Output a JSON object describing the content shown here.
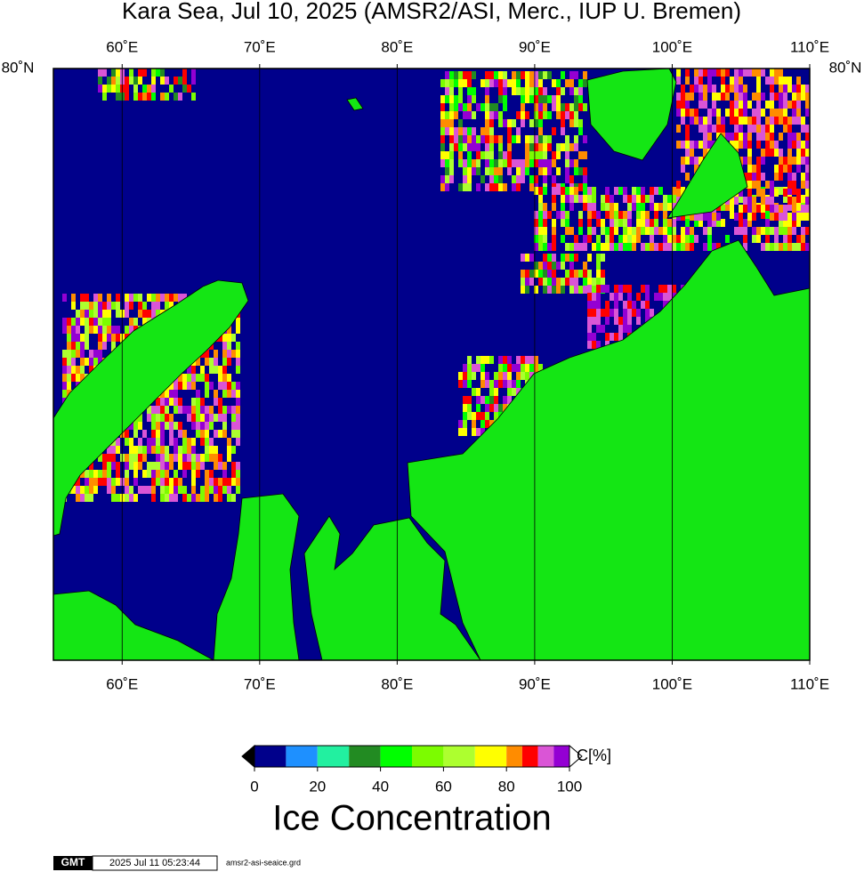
{
  "title": "Kara Sea, Jul 10, 2025 (AMSR2/ASI, Merc., IUP U. Bremen)",
  "map": {
    "lonlim": [
      55,
      110
    ],
    "lon_ticks": [
      {
        "value": 60,
        "label": "60˚E"
      },
      {
        "value": 70,
        "label": "70˚E"
      },
      {
        "value": 80,
        "label": "80˚E"
      },
      {
        "value": 90,
        "label": "90˚E"
      },
      {
        "value": 100,
        "label": "100˚E"
      },
      {
        "value": 110,
        "label": "110˚E"
      }
    ],
    "lat_label": "80˚N"
  },
  "colorbar": {
    "title": "Ice Concentration",
    "unit": "C[%]",
    "range": [
      0,
      100
    ],
    "ticks": [
      0,
      20,
      40,
      60,
      80,
      100
    ],
    "bins": [
      0,
      10,
      20,
      30,
      40,
      50,
      60,
      70,
      80,
      85,
      90,
      95,
      100
    ],
    "colors": [
      "#00008b",
      "#1e90ff",
      "#22f0a0",
      "#228b22",
      "#00ff00",
      "#7cfc00",
      "#adff2f",
      "#ffff00",
      "#ff8c00",
      "#ff0000",
      "#da55d6",
      "#9400d3"
    ]
  },
  "footer": {
    "logo": "GMT",
    "timestamp": "2025 Jul 11 05:23:44",
    "file": "amsr2-asi-seaice.grd"
  }
}
